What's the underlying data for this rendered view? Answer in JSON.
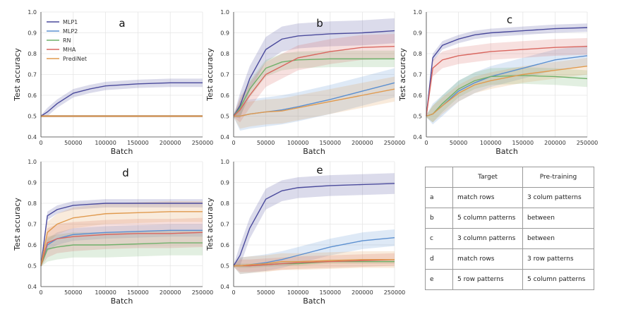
{
  "colors": {
    "MLP1": "#4a4a9c",
    "MLP2": "#5b8fd0",
    "RN": "#6fb06a",
    "MHA": "#d9665f",
    "PrediNet": "#e09a4e",
    "grid": "#e6e6e6"
  },
  "legend": [
    "MLP1",
    "MLP2",
    "RN",
    "MHA",
    "PrediNet"
  ],
  "table": {
    "headers": [
      "",
      "Target",
      "Pre-training"
    ],
    "rows": [
      [
        "a",
        "match rows",
        "3 colum patterns"
      ],
      [
        "b",
        "5 column patterns",
        "between"
      ],
      [
        "c",
        "3 column patterns",
        "between"
      ],
      [
        "d",
        "match rows",
        "3 row patterns"
      ],
      [
        "e",
        "5 row patterns",
        "5 column patterns"
      ]
    ]
  },
  "chart_data": [
    {
      "type": "line",
      "panel": "a",
      "xlabel": "Batch",
      "ylabel": "Test accuracy",
      "xlim": [
        0,
        250000
      ],
      "ylim": [
        0.4,
        1.0
      ],
      "x_ticks": [
        0,
        50000,
        100000,
        150000,
        200000,
        250000
      ],
      "y_ticks": [
        0.4,
        0.5,
        0.6,
        0.7,
        0.8,
        0.9,
        1.0
      ],
      "x": [
        0,
        10000,
        25000,
        50000,
        75000,
        100000,
        150000,
        200000,
        250000
      ],
      "series": [
        {
          "name": "MLP1",
          "values": [
            0.5,
            0.52,
            0.56,
            0.61,
            0.63,
            0.645,
            0.655,
            0.66,
            0.66
          ],
          "band": 0.02
        },
        {
          "name": "MLP2",
          "values": [
            0.5,
            0.5,
            0.5,
            0.5,
            0.5,
            0.5,
            0.5,
            0.5,
            0.5
          ],
          "band": 0.005
        },
        {
          "name": "RN",
          "values": [
            0.5,
            0.5,
            0.5,
            0.5,
            0.5,
            0.5,
            0.5,
            0.5,
            0.5
          ],
          "band": 0.005
        },
        {
          "name": "MHA",
          "values": [
            0.5,
            0.5,
            0.5,
            0.5,
            0.5,
            0.5,
            0.5,
            0.5,
            0.5
          ],
          "band": 0.005
        },
        {
          "name": "PrediNet",
          "values": [
            0.5,
            0.5,
            0.5,
            0.5,
            0.5,
            0.5,
            0.5,
            0.5,
            0.5
          ],
          "band": 0.005
        }
      ]
    },
    {
      "type": "line",
      "panel": "b",
      "xlabel": "Batch",
      "ylabel": "Test accuracy",
      "xlim": [
        0,
        250000
      ],
      "ylim": [
        0.4,
        1.0
      ],
      "x_ticks": [
        0,
        50000,
        100000,
        150000,
        200000,
        250000
      ],
      "y_ticks": [
        0.4,
        0.5,
        0.6,
        0.7,
        0.8,
        0.9,
        1.0
      ],
      "x": [
        0,
        10000,
        25000,
        50000,
        75000,
        100000,
        150000,
        200000,
        250000
      ],
      "series": [
        {
          "name": "MLP1",
          "values": [
            0.5,
            0.55,
            0.68,
            0.82,
            0.87,
            0.885,
            0.895,
            0.9,
            0.91
          ],
          "band": 0.06
        },
        {
          "name": "MLP2",
          "values": [
            0.5,
            0.5,
            0.51,
            0.52,
            0.53,
            0.545,
            0.58,
            0.62,
            0.66
          ],
          "band": 0.07
        },
        {
          "name": "RN",
          "values": [
            0.5,
            0.54,
            0.63,
            0.73,
            0.76,
            0.77,
            0.775,
            0.775,
            0.775
          ],
          "band": 0.04
        },
        {
          "name": "MHA",
          "values": [
            0.5,
            0.53,
            0.6,
            0.7,
            0.74,
            0.78,
            0.81,
            0.83,
            0.835
          ],
          "band": 0.06
        },
        {
          "name": "PrediNet",
          "values": [
            0.5,
            0.5,
            0.51,
            0.52,
            0.525,
            0.54,
            0.57,
            0.6,
            0.63
          ],
          "band": 0.06
        }
      ]
    },
    {
      "type": "line",
      "panel": "c",
      "xlabel": "Batch",
      "ylabel": "Test accuracy",
      "xlim": [
        0,
        250000
      ],
      "ylim": [
        0.4,
        1.0
      ],
      "x_ticks": [
        0,
        50000,
        100000,
        150000,
        200000,
        250000
      ],
      "y_ticks": [
        0.4,
        0.5,
        0.6,
        0.7,
        0.8,
        0.9,
        1.0
      ],
      "x": [
        0,
        10000,
        25000,
        50000,
        75000,
        100000,
        150000,
        200000,
        250000
      ],
      "series": [
        {
          "name": "MLP1",
          "values": [
            0.5,
            0.78,
            0.84,
            0.87,
            0.89,
            0.9,
            0.91,
            0.92,
            0.925
          ],
          "band": 0.02
        },
        {
          "name": "MLP2",
          "values": [
            0.5,
            0.51,
            0.55,
            0.62,
            0.66,
            0.69,
            0.73,
            0.77,
            0.79
          ],
          "band": 0.05
        },
        {
          "name": "RN",
          "values": [
            0.5,
            0.51,
            0.56,
            0.63,
            0.67,
            0.69,
            0.695,
            0.69,
            0.68
          ],
          "band": 0.04
        },
        {
          "name": "MHA",
          "values": [
            0.5,
            0.73,
            0.77,
            0.79,
            0.8,
            0.81,
            0.82,
            0.83,
            0.835
          ],
          "band": 0.04
        },
        {
          "name": "PrediNet",
          "values": [
            0.5,
            0.51,
            0.55,
            0.61,
            0.65,
            0.67,
            0.7,
            0.72,
            0.74
          ],
          "band": 0.04
        }
      ]
    },
    {
      "type": "line",
      "panel": "d",
      "xlabel": "Batch",
      "ylabel": "Test accuracy",
      "xlim": [
        0,
        250000
      ],
      "ylim": [
        0.4,
        1.0
      ],
      "x_ticks": [
        0,
        50000,
        100000,
        150000,
        200000,
        250000
      ],
      "y_ticks": [
        0.4,
        0.5,
        0.6,
        0.7,
        0.8,
        0.9,
        1.0
      ],
      "x": [
        0,
        10000,
        25000,
        50000,
        75000,
        100000,
        150000,
        200000,
        250000
      ],
      "series": [
        {
          "name": "MLP1",
          "values": [
            0.5,
            0.74,
            0.77,
            0.79,
            0.795,
            0.8,
            0.8,
            0.8,
            0.8
          ],
          "band": 0.02
        },
        {
          "name": "MLP2",
          "values": [
            0.5,
            0.6,
            0.63,
            0.65,
            0.655,
            0.66,
            0.665,
            0.67,
            0.67
          ],
          "band": 0.03
        },
        {
          "name": "RN",
          "values": [
            0.5,
            0.58,
            0.59,
            0.6,
            0.6,
            0.6,
            0.605,
            0.61,
            0.61
          ],
          "band": 0.06
        },
        {
          "name": "MHA",
          "values": [
            0.5,
            0.61,
            0.63,
            0.64,
            0.645,
            0.65,
            0.655,
            0.655,
            0.66
          ],
          "band": 0.07
        },
        {
          "name": "PrediNet",
          "values": [
            0.5,
            0.66,
            0.7,
            0.73,
            0.74,
            0.75,
            0.755,
            0.76,
            0.76
          ],
          "band": 0.05
        }
      ]
    },
    {
      "type": "line",
      "panel": "e",
      "xlabel": "Batch",
      "ylabel": "Test accuracy",
      "xlim": [
        0,
        250000
      ],
      "ylim": [
        0.4,
        1.0
      ],
      "x_ticks": [
        0,
        50000,
        100000,
        150000,
        200000,
        250000
      ],
      "y_ticks": [
        0.4,
        0.5,
        0.6,
        0.7,
        0.8,
        0.9,
        1.0
      ],
      "x": [
        0,
        10000,
        25000,
        50000,
        75000,
        100000,
        150000,
        200000,
        250000
      ],
      "series": [
        {
          "name": "MLP1",
          "values": [
            0.5,
            0.55,
            0.68,
            0.82,
            0.86,
            0.875,
            0.885,
            0.89,
            0.895
          ],
          "band": 0.05
        },
        {
          "name": "MLP2",
          "values": [
            0.5,
            0.5,
            0.505,
            0.515,
            0.53,
            0.55,
            0.59,
            0.62,
            0.635
          ],
          "band": 0.04
        },
        {
          "name": "RN",
          "values": [
            0.5,
            0.5,
            0.5,
            0.505,
            0.51,
            0.51,
            0.52,
            0.52,
            0.52
          ],
          "band": 0.01
        },
        {
          "name": "MHA",
          "values": [
            0.5,
            0.5,
            0.5,
            0.505,
            0.51,
            0.515,
            0.52,
            0.525,
            0.53
          ],
          "band": 0.03
        },
        {
          "name": "PrediNet",
          "values": [
            0.5,
            0.5,
            0.505,
            0.51,
            0.52,
            0.52,
            0.525,
            0.53,
            0.53
          ],
          "band": 0.04
        }
      ]
    }
  ]
}
